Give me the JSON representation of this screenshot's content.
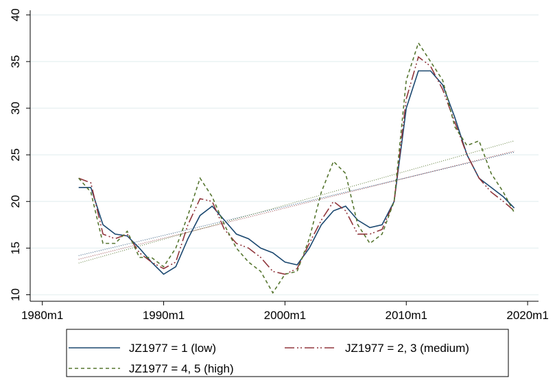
{
  "chart_data": {
    "type": "line",
    "x": [
      1983,
      1984,
      1985,
      1986,
      1987,
      1988,
      1989,
      1990,
      1991,
      1992,
      1993,
      1994,
      1995,
      1996,
      1997,
      1998,
      1999,
      2000,
      2001,
      2002,
      2003,
      2004,
      2005,
      2006,
      2007,
      2008,
      2009,
      2010,
      2011,
      2012,
      2013,
      2014,
      2015,
      2016,
      2017,
      2018,
      2018.9
    ],
    "series": [
      {
        "name": "JZ1977 = 1 (low)",
        "color": "#1a476f",
        "line_style": "solid",
        "values": [
          21.5,
          21.5,
          17.5,
          16.5,
          16.3,
          15,
          13.5,
          12.2,
          13,
          16,
          18.5,
          19.5,
          18,
          16.5,
          16,
          15,
          14.5,
          13.5,
          13.2,
          15,
          17.5,
          19,
          19.5,
          18,
          17.2,
          17.5,
          20,
          30,
          34,
          34,
          32.5,
          29,
          25,
          22.5,
          21.5,
          20.5,
          19.3
        ]
      },
      {
        "name": "JZ1977 = 2, 3 (medium)",
        "color": "#90353b",
        "line_style": "dashdot",
        "values": [
          22.5,
          22,
          16.5,
          16,
          16.5,
          14.5,
          13.5,
          12.8,
          13.5,
          17.5,
          20.3,
          20,
          17,
          15.5,
          15,
          14,
          12.5,
          12.2,
          12.8,
          15.5,
          18,
          20,
          19,
          16.5,
          16.5,
          17,
          20,
          31,
          35.5,
          34.5,
          32,
          28.5,
          25,
          22.5,
          21,
          20,
          19
        ]
      },
      {
        "name": "JZ1977 = 4, 5 (high)",
        "color": "#55752f",
        "line_style": "dash",
        "values": [
          22.5,
          21,
          15.5,
          15.5,
          16.8,
          14,
          14,
          13,
          15,
          18.5,
          22.5,
          20.5,
          17.5,
          15,
          13.5,
          12.5,
          10.2,
          12.2,
          12.5,
          16,
          21,
          24.3,
          23,
          17.5,
          15.5,
          16.5,
          20,
          33,
          37,
          35,
          33,
          28,
          26,
          26.5,
          23,
          21,
          18.8
        ]
      }
    ],
    "trends": [
      {
        "color": "#1a476f",
        "x": [
          1983,
          2018.9
        ],
        "values": [
          14.2,
          25.3
        ]
      },
      {
        "color": "#90353b",
        "x": [
          1983,
          2018.9
        ],
        "values": [
          13.8,
          25.4
        ]
      },
      {
        "color": "#55752f",
        "x": [
          1983,
          2018.9
        ],
        "values": [
          13.4,
          26.5
        ]
      }
    ],
    "xlim": [
      1979,
      2020.9
    ],
    "ylim": [
      9.3,
      40.5
    ],
    "xticks": [
      {
        "value": 1980,
        "label": "1980m1"
      },
      {
        "value": 1990,
        "label": "1990m1"
      },
      {
        "value": 2000,
        "label": "2000m1"
      },
      {
        "value": 2010,
        "label": "2010m1"
      },
      {
        "value": 2020,
        "label": "2020m1"
      }
    ],
    "yticks": [
      10,
      15,
      20,
      25,
      30,
      35,
      40
    ],
    "grid": true
  }
}
